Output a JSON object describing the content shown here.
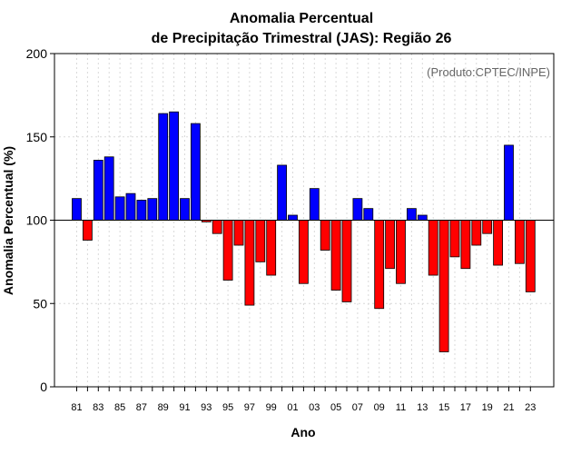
{
  "chart_data": {
    "type": "bar",
    "title": [
      "Anomalia Percentual",
      "de Precipitação Trimestral (JAS): Região 26"
    ],
    "credit": "(Produto:CPTEC/INPE)",
    "xlabel": "Ano",
    "ylabel": "Anomalia Percentual (%)",
    "ylim": [
      0,
      200
    ],
    "yticks": [
      0,
      50,
      100,
      150,
      200
    ],
    "baseline": 100,
    "grid": true,
    "colors": {
      "above": "#0000ff",
      "below": "#ff0000",
      "edge": "#000000",
      "grid": "#d9d9d9"
    },
    "categories": [
      "81",
      "82",
      "83",
      "84",
      "85",
      "86",
      "87",
      "88",
      "89",
      "90",
      "91",
      "92",
      "93",
      "94",
      "95",
      "96",
      "97",
      "98",
      "99",
      "00",
      "01",
      "02",
      "03",
      "04",
      "05",
      "06",
      "07",
      "08",
      "09",
      "10",
      "11",
      "12",
      "13",
      "14",
      "15",
      "16",
      "17",
      "18",
      "19",
      "20",
      "21",
      "22",
      "23"
    ],
    "xtick_labels": [
      "81",
      "83",
      "85",
      "87",
      "89",
      "91",
      "93",
      "95",
      "97",
      "99",
      "01",
      "03",
      "05",
      "07",
      "09",
      "11",
      "13",
      "15",
      "17",
      "19",
      "21",
      "23"
    ],
    "values": [
      113,
      88,
      136,
      138,
      114,
      116,
      112,
      113,
      164,
      165,
      113,
      158,
      99,
      92,
      64,
      85,
      49,
      75,
      67,
      133,
      103,
      62,
      119,
      82,
      58,
      51,
      113,
      107,
      47,
      71,
      62,
      107,
      103,
      67,
      21,
      78,
      71,
      85,
      92,
      73,
      145,
      74,
      57
    ]
  }
}
